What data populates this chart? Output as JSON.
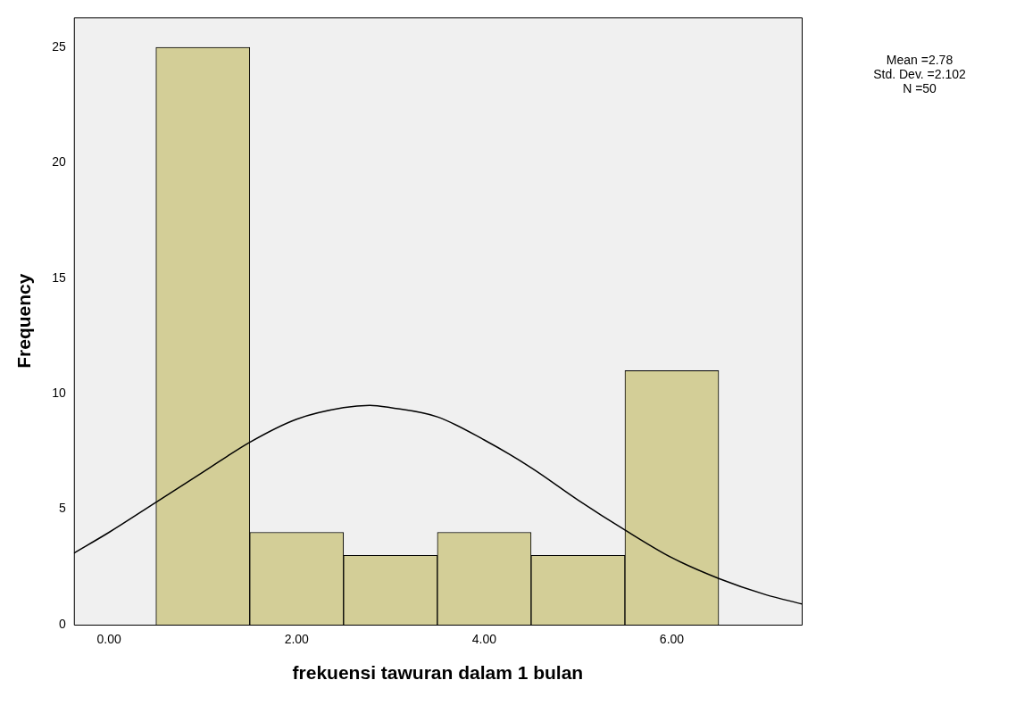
{
  "chart_data": {
    "type": "histogram",
    "xlabel": "frekuensi tawuran dalam 1 bulan",
    "ylabel": "Frequency",
    "bins": [
      0.5,
      1.5,
      2.5,
      3.5,
      4.5,
      5.5,
      6.5
    ],
    "values": [
      25,
      4,
      3,
      4,
      3,
      11
    ],
    "color": "#d3ce97",
    "series": [
      {
        "type": "line",
        "color": "#000000",
        "x": [
          -0.375,
          0,
          0.5,
          1,
          1.5,
          2,
          2.5,
          2.78,
          3,
          3.5,
          4,
          4.5,
          5,
          5.5,
          6,
          6.5,
          7,
          7.385
        ],
        "values": [
          3.1,
          4.0,
          5.3,
          6.6,
          7.9,
          8.9,
          9.4,
          9.5,
          9.4,
          9.0,
          8.0,
          6.8,
          5.4,
          4.1,
          2.9,
          2.0,
          1.3,
          0.9
        ]
      }
    ],
    "xlim": [
      -0.375,
      7.385
    ],
    "xticks": [
      {
        "value": 0,
        "label": "0.00"
      },
      {
        "value": 2,
        "label": "2.00"
      },
      {
        "value": 4,
        "label": "4.00"
      },
      {
        "value": 6,
        "label": "6.00"
      }
    ],
    "ylim": [
      0,
      26.3
    ],
    "yticks": [
      0,
      5,
      10,
      15,
      20,
      25
    ],
    "grid": false,
    "legend": false,
    "annotations": [
      "Mean =2.78",
      "Std. Dev. =2.102",
      "N =50"
    ]
  }
}
